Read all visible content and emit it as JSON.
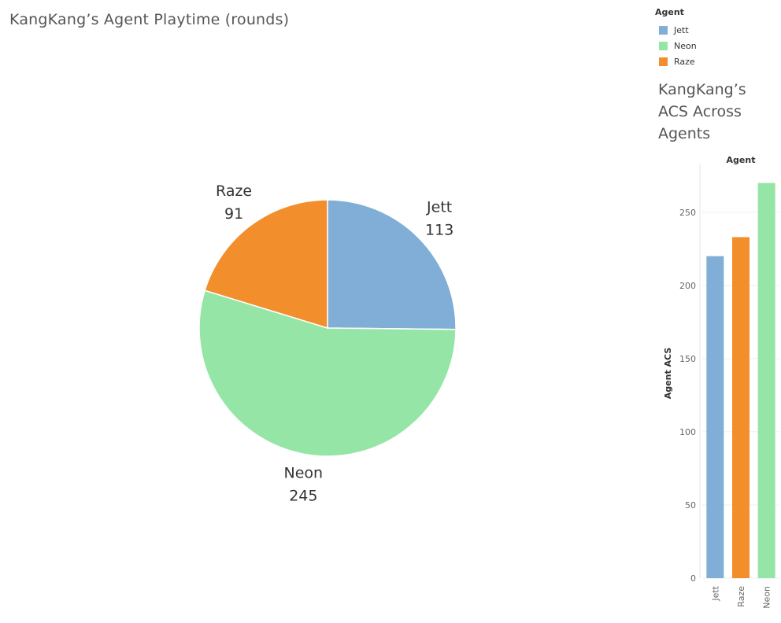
{
  "pie": {
    "title": "KangKang’s Agent Playtime (rounds)"
  },
  "legend": {
    "title": "Agent",
    "items": [
      {
        "label": "Jett",
        "color": "#80aed6"
      },
      {
        "label": "Neon",
        "color": "#95e6a6"
      },
      {
        "label": "Raze",
        "color": "#f28e2c"
      }
    ]
  },
  "bar": {
    "title": "KangKang’s ACS Across Agents"
  },
  "chart_data": [
    {
      "type": "pie",
      "title": "KangKang’s Agent Playtime (rounds)",
      "slices": [
        {
          "label": "Jett",
          "value": 113,
          "color": "#80aed6"
        },
        {
          "label": "Neon",
          "value": 245,
          "color": "#95e6a6"
        },
        {
          "label": "Raze",
          "value": 91,
          "color": "#f28e2c"
        }
      ],
      "legend": "top-right"
    },
    {
      "type": "bar",
      "title": "KangKang’s ACS Across Agents",
      "column_header": "Agent",
      "categories": [
        "Jett",
        "Raze",
        "Neon"
      ],
      "values": [
        220,
        233,
        270
      ],
      "colors": [
        "#80aed6",
        "#f28e2c",
        "#95e6a6"
      ],
      "ylabel": "Agent ACS",
      "ylim": [
        0,
        280
      ],
      "yticks": [
        0,
        50,
        100,
        150,
        200,
        250
      ],
      "grid": true
    }
  ]
}
